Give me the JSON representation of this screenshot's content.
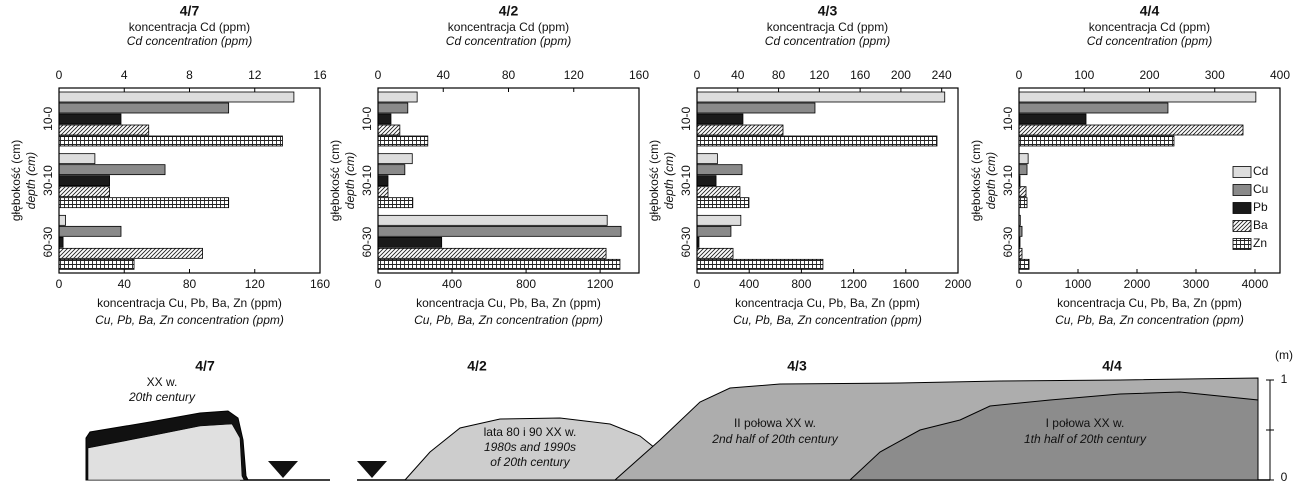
{
  "chart_data": [
    {
      "type": "bar",
      "orientation": "horizontal",
      "title": "4/7",
      "x2_label": [
        "koncentracja Cd (ppm)",
        "Cd concentration (ppm)"
      ],
      "x_label": [
        "koncentracja Cu, Pb, Ba, Zn (ppm)",
        "Cu, Pb, Ba, Zn concentration (ppm)"
      ],
      "y_label": [
        "głębokość (cm)",
        "depth (cm)"
      ],
      "categories": [
        "10-0",
        "30-10",
        "60-30"
      ],
      "x2lim": [
        0,
        16
      ],
      "x2ticks": [
        0,
        4,
        8,
        12,
        16
      ],
      "xlim": [
        0,
        160
      ],
      "xticks": [
        0,
        40,
        80,
        120,
        160
      ],
      "series": [
        {
          "color": "#dddddd",
          "axis": "x2",
          "values": [
            14.4,
            2.2,
            0.4
          ]
        },
        {
          "color": "#8a8a8a",
          "values": [
            104,
            65,
            38
          ]
        },
        {
          "color": "#1a1a1a",
          "values": [
            38,
            31,
            2.5
          ]
        },
        {
          "color": "#222222",
          "pattern": "hatch",
          "values": [
            55,
            31,
            88
          ]
        },
        {
          "color": "#222222",
          "pattern": "grid",
          "values": [
            137,
            104,
            46
          ]
        }
      ]
    },
    {
      "type": "bar",
      "orientation": "horizontal",
      "title": "4/2",
      "x2_label": [
        "koncentracja Cd (ppm)",
        "Cd concentration (ppm)"
      ],
      "x_label": [
        "koncentracja Cu, Pb, Ba, Zn (ppm)",
        "Cu, Pb, Ba, Zn concentration (ppm)"
      ],
      "y_label": [
        "głębokość (cm)",
        "depth (cm)"
      ],
      "categories": [
        "10-0",
        "30-10",
        "60-30"
      ],
      "x2lim": [
        0,
        160
      ],
      "x2ticks": [
        0,
        40,
        80,
        120,
        160
      ],
      "xlim": [
        0,
        1410
      ],
      "xticks": [
        0,
        400,
        800,
        1200
      ],
      "series": [
        {
          "color": "#dddddd",
          "axis": "x2",
          "values": [
            24,
            21,
            140.5
          ]
        },
        {
          "color": "#8a8a8a",
          "values": [
            161,
            145,
            1313
          ]
        },
        {
          "color": "#1a1a1a",
          "values": [
            70,
            54,
            344
          ]
        },
        {
          "color": "#222222",
          "pattern": "hatch",
          "values": [
            118,
            54,
            1232
          ]
        },
        {
          "color": "#222222",
          "pattern": "grid",
          "values": [
            269,
            188,
            1307
          ]
        }
      ]
    },
    {
      "type": "bar",
      "orientation": "horizontal",
      "title": "4/3",
      "x2_label": [
        "koncentracja Cd (ppm)",
        "Cd concentration (ppm)"
      ],
      "x_label": [
        "koncentracja Cu, Pb, Ba, Zn (ppm)",
        "Cu, Pb, Ba, Zn concentration (ppm)"
      ],
      "y_label": [
        "głębokość (cm)",
        "depth (cm)"
      ],
      "categories": [
        "10-0",
        "30-10",
        "60-30"
      ],
      "x2lim": [
        0,
        256
      ],
      "x2ticks": [
        0,
        40,
        80,
        120,
        160,
        200,
        240
      ],
      "xlim": [
        0,
        2000
      ],
      "xticks": [
        0,
        400,
        800,
        1200,
        1600,
        2000
      ],
      "series": [
        {
          "color": "#dddddd",
          "axis": "x2",
          "values": [
            243,
            20,
            43
          ]
        },
        {
          "color": "#8a8a8a",
          "values": [
            904,
            345,
            260
          ]
        },
        {
          "color": "#1a1a1a",
          "values": [
            352,
            146,
            15
          ]
        },
        {
          "color": "#222222",
          "pattern": "hatch",
          "values": [
            659,
            329,
            276
          ]
        },
        {
          "color": "#222222",
          "pattern": "grid",
          "values": [
            1839,
            398,
            965
          ]
        }
      ]
    },
    {
      "type": "bar",
      "orientation": "horizontal",
      "title": "4/4",
      "x2_label": [
        "koncentracja Cd (ppm)",
        "Cd concentration (ppm)"
      ],
      "x_label": [
        "koncentracja Cu, Pb, Ba, Zn (ppm)",
        "Cu, Pb, Ba, Zn concentration (ppm)"
      ],
      "y_label": [
        "głębokość (cm)",
        "depth (cm)"
      ],
      "categories": [
        "10-0",
        "30-10",
        "60-30"
      ],
      "x2lim": [
        0,
        400
      ],
      "x2ticks": [
        0,
        100,
        200,
        300,
        400
      ],
      "xlim": [
        0,
        4424
      ],
      "xticks": [
        0,
        1000,
        2000,
        3000,
        4000
      ],
      "legend": "right",
      "series": [
        {
          "name": "Cd",
          "color": "#dddddd",
          "axis": "x2",
          "values": [
            363,
            14,
            2
          ]
        },
        {
          "name": "Cu",
          "color": "#8a8a8a",
          "values": [
            2525,
            136,
            51
          ]
        },
        {
          "name": "Pb",
          "color": "#1a1a1a",
          "values": [
            1136,
            17,
            17
          ]
        },
        {
          "name": "Ba",
          "color": "#222222",
          "pattern": "hatch",
          "values": [
            3797,
            119,
            51
          ]
        },
        {
          "name": "Zn",
          "color": "#222222",
          "pattern": "grid",
          "values": [
            2627,
            136,
            170
          ]
        }
      ]
    }
  ],
  "diagram": {
    "sections": [
      {
        "title": "4/7",
        "lines": [
          "XX w.",
          "20th century"
        ]
      },
      {
        "title": "4/2",
        "lines": [
          "lata 80 i 90 XX w.",
          "1980s and 1990s",
          "of 20th century"
        ]
      },
      {
        "title": "4/3",
        "lines": [
          "II połowa XX w.",
          "2nd half of 20th century"
        ]
      },
      {
        "title": "4/4",
        "lines": [
          "I połowa XX w.",
          "1th half of 20th century"
        ]
      }
    ],
    "scale": {
      "unit": "(m)",
      "ticks": [
        1,
        0
      ]
    }
  }
}
